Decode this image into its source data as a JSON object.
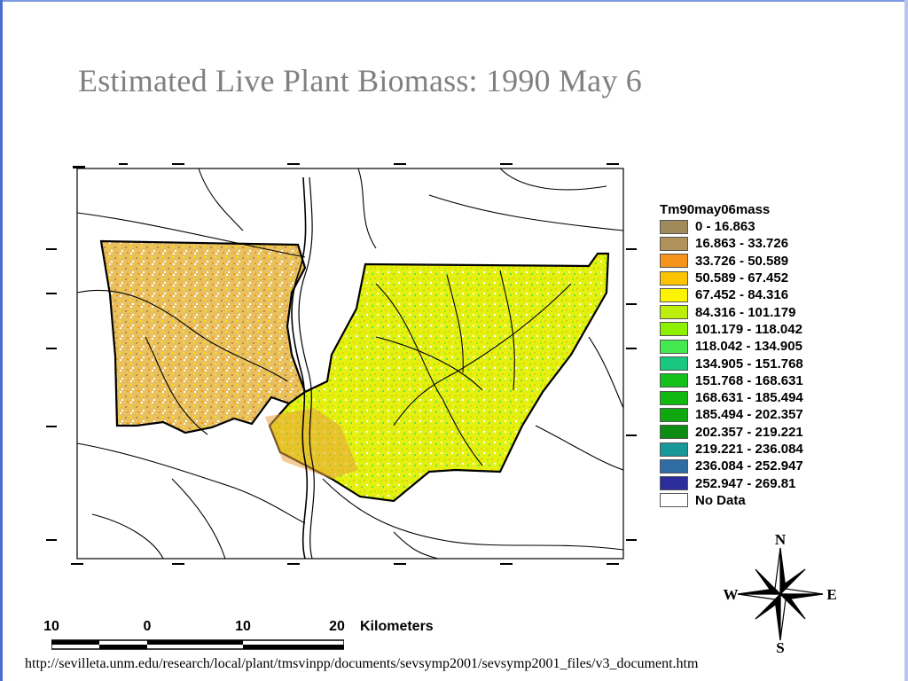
{
  "title": "Estimated Live Plant Biomass: 1990 May 6",
  "legend": {
    "title": "Tm90may06mass",
    "items": [
      {
        "label": "0 - 16.863",
        "color": "#a0895a"
      },
      {
        "label": "16.863 - 33.726",
        "color": "#b0925a"
      },
      {
        "label": "33.726 - 50.589",
        "color": "#f4941a"
      },
      {
        "label": "50.589 - 67.452",
        "color": "#fcc400"
      },
      {
        "label": "67.452 - 84.316",
        "color": "#fcf400"
      },
      {
        "label": "84.316 - 101.179",
        "color": "#bcf00c"
      },
      {
        "label": "101.179 - 118.042",
        "color": "#8cf000"
      },
      {
        "label": "118.042 - 134.905",
        "color": "#44e850"
      },
      {
        "label": "134.905 - 151.768",
        "color": "#18c880"
      },
      {
        "label": "151.768 - 168.631",
        "color": "#14c01c"
      },
      {
        "label": "168.631 - 185.494",
        "color": "#10b810"
      },
      {
        "label": "185.494 - 202.357",
        "color": "#10a810"
      },
      {
        "label": "202.357 - 219.221",
        "color": "#0c8c14"
      },
      {
        "label": "219.221 - 236.084",
        "color": "#189898"
      },
      {
        "label": "236.084 - 252.947",
        "color": "#306ca4"
      },
      {
        "label": "252.947 - 269.81",
        "color": "#2c2c9c"
      },
      {
        "label": "No Data",
        "color": "#ffffff"
      }
    ]
  },
  "scale": {
    "ticks": [
      "10",
      "0",
      "10",
      "20"
    ],
    "units": "Kilometers"
  },
  "compass": {
    "n": "N",
    "s": "S",
    "e": "E",
    "w": "W"
  },
  "footer_url": "http://sevilleta.unm.edu/research/local/plant/tmsvinpp/documents/sevsymp2001/sevsymp2001_files/v3_document.htm"
}
